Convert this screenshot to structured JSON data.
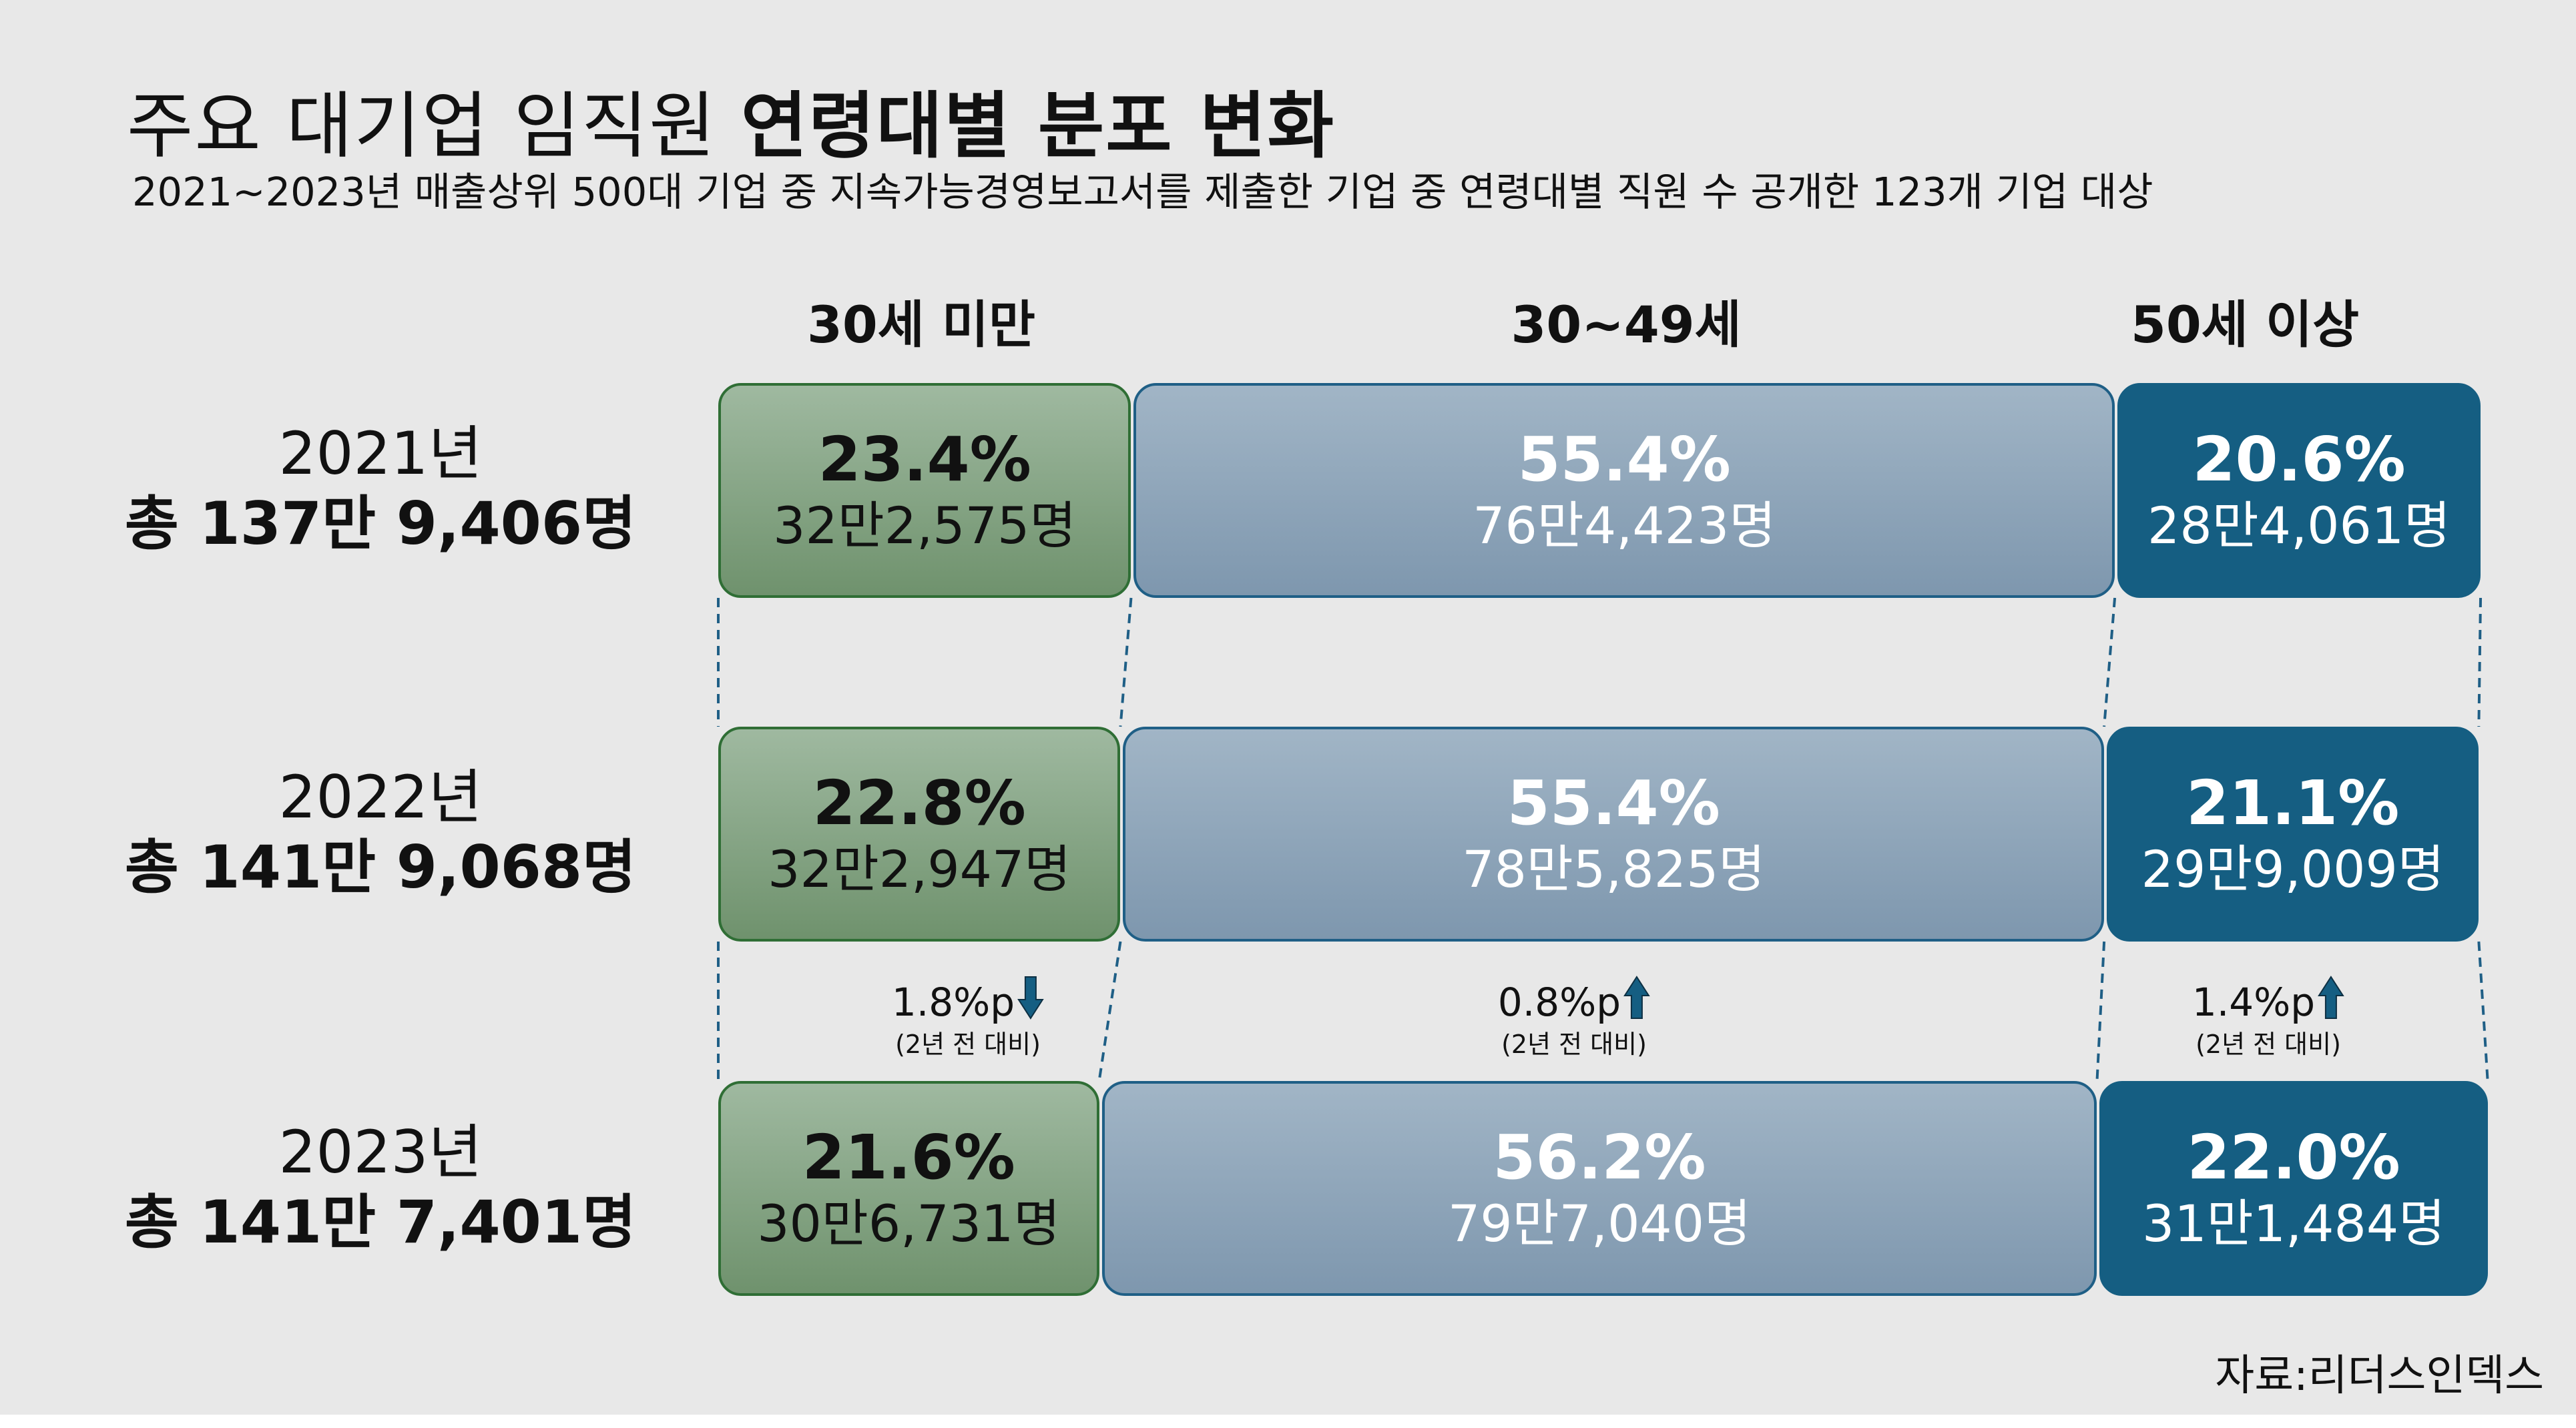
{
  "header": {
    "title_light": "주요 대기업 임직원",
    "title_bold": "연령대별 분포 변화",
    "subtitle": "2021~2023년 매출상위 500대 기업 중 지속가능경영보고서를 제출한 기업 중 연령대별 직원 수 공개한 123개 기업 대상"
  },
  "source": "자료:리더스인덱스",
  "colors": {
    "under30": "#7f9f7e",
    "age30to49": "#8ea5ba",
    "over50": "#155e82",
    "up_arrow": "#155e82",
    "down_arrow": "#155e82"
  },
  "chart_data": {
    "type": "bar",
    "orientation": "horizontal",
    "stacked": true,
    "title": "주요 대기업 임직원 연령대별 분포 변화",
    "categories": [
      "30세 미만",
      "30~49세",
      "50세 이상"
    ],
    "rows": [
      {
        "year": "2021년",
        "total": "총 137만 9,406명",
        "values": [
          23.4,
          55.4,
          20.6
        ],
        "pct_labels": [
          "23.4%",
          "55.4%",
          "20.6%"
        ],
        "count_labels": [
          "32만2,575명",
          "76만4,423명",
          "28만4,061명"
        ]
      },
      {
        "year": "2022년",
        "total": "총 141만 9,068명",
        "values": [
          22.8,
          55.4,
          21.1
        ],
        "pct_labels": [
          "22.8%",
          "55.4%",
          "21.1%"
        ],
        "count_labels": [
          "32만2,947명",
          "78만5,825명",
          "29만9,009명"
        ]
      },
      {
        "year": "2023년",
        "total": "총 141만 7,401명",
        "values": [
          21.6,
          56.2,
          22.0
        ],
        "pct_labels": [
          "21.6%",
          "56.2%",
          "22.0%"
        ],
        "count_labels": [
          "30만6,731명",
          "79만7,040명",
          "31만1,484명"
        ]
      }
    ],
    "changes": [
      {
        "value": "1.8%p",
        "direction": "down",
        "note": "(2년 전 대비)"
      },
      {
        "value": "0.8%p",
        "direction": "up",
        "note": "(2년 전 대비)"
      },
      {
        "value": "1.4%p",
        "direction": "up",
        "note": "(2년 전 대비)"
      }
    ]
  }
}
